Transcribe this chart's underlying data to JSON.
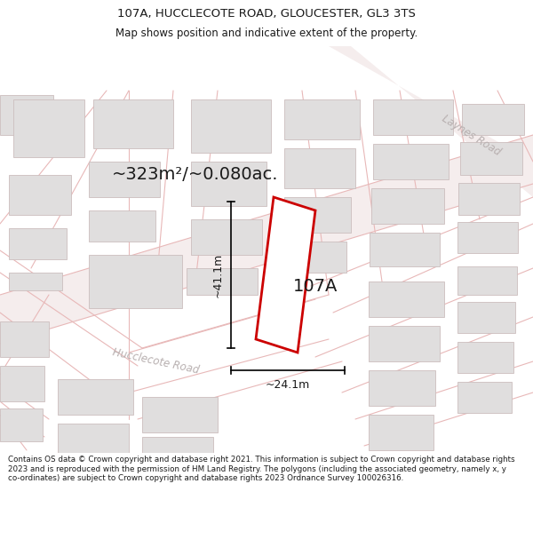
{
  "title": "107A, HUCCLECOTE ROAD, GLOUCESTER, GL3 3TS",
  "subtitle": "Map shows position and indicative extent of the property.",
  "footer_text": "Contains OS data © Crown copyright and database right 2021. This information is subject to Crown copyright and database rights 2023 and is reproduced with the permission of HM Land Registry. The polygons (including the associated geometry, namely x, y co-ordinates) are subject to Crown copyright and database rights 2023 Ordnance Survey 100026316.",
  "area_label": "~323m²/~0.080ac.",
  "property_label": "107A",
  "dim_height": "~41.1m",
  "dim_width": "~24.1m",
  "road_label_1": "Hucclecote Road",
  "road_label_2": "Laynes Road",
  "map_bg": "#f7f5f5",
  "road_line_color": "#e8b8b8",
  "building_fill": "#e0dede",
  "building_edge": "#ccbebe",
  "property_color": "#cc0000",
  "property_fill": "#ffffff",
  "dim_color": "#1a1a1a",
  "title_color": "#1a1a1a",
  "road_text_color": "#b8b0b0",
  "title_fontsize": 9.5,
  "subtitle_fontsize": 8.5,
  "footer_fontsize": 6.3,
  "area_fontsize": 14,
  "label_fontsize": 14,
  "dim_fontsize": 9,
  "road_label_fontsize": 8.5
}
